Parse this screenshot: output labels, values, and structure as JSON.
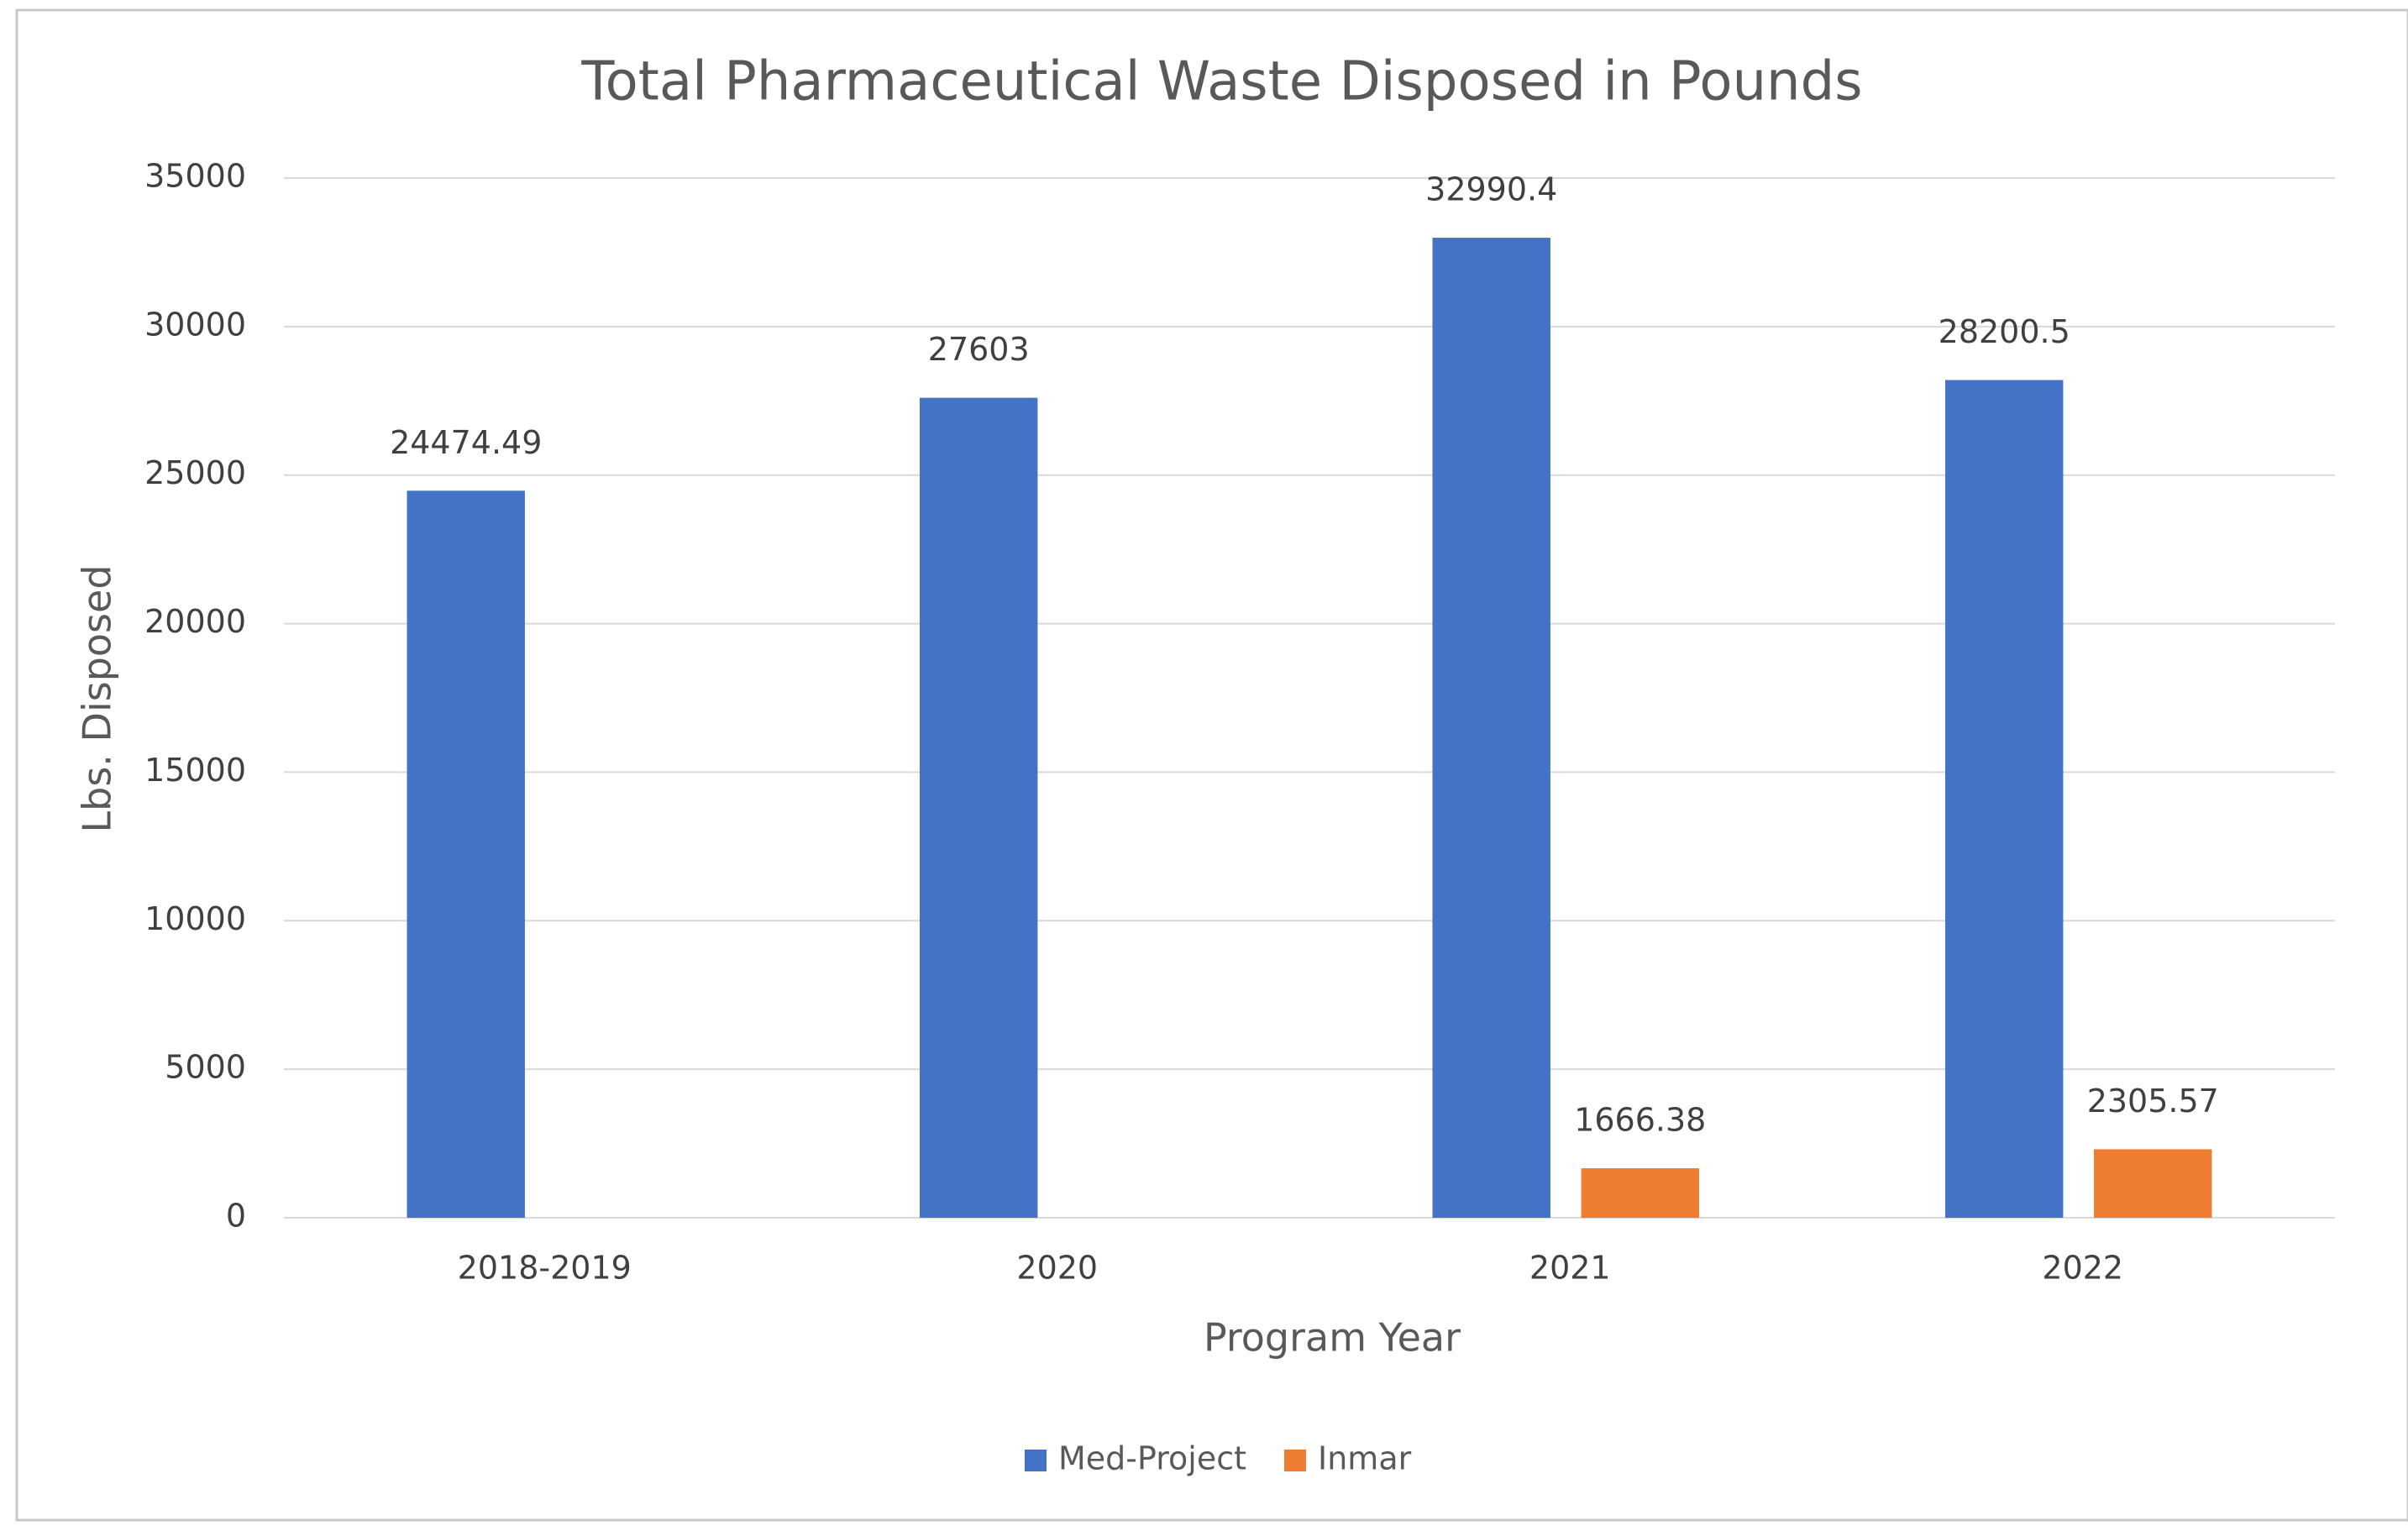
{
  "chart_data": {
    "type": "bar",
    "title": "Total Pharmaceutical Waste Disposed in Pounds",
    "x_label": "Program Year",
    "y_label": "Lbs. Disposed",
    "categories": [
      "2018-2019",
      "2020",
      "2021",
      "2022"
    ],
    "series": [
      {
        "name": "Med-Project",
        "color": "#4472c4",
        "values": [
          24474.49,
          27603,
          32990.4,
          28200.5
        ]
      },
      {
        "name": "Inmar",
        "color": "#ed7d31",
        "values": [
          null,
          null,
          1666.38,
          2305.57
        ]
      }
    ],
    "ylim": [
      0,
      35000
    ],
    "yticks": [
      0,
      5000,
      10000,
      15000,
      20000,
      25000,
      30000,
      35000
    ],
    "grid": true,
    "legend": "bottom"
  }
}
